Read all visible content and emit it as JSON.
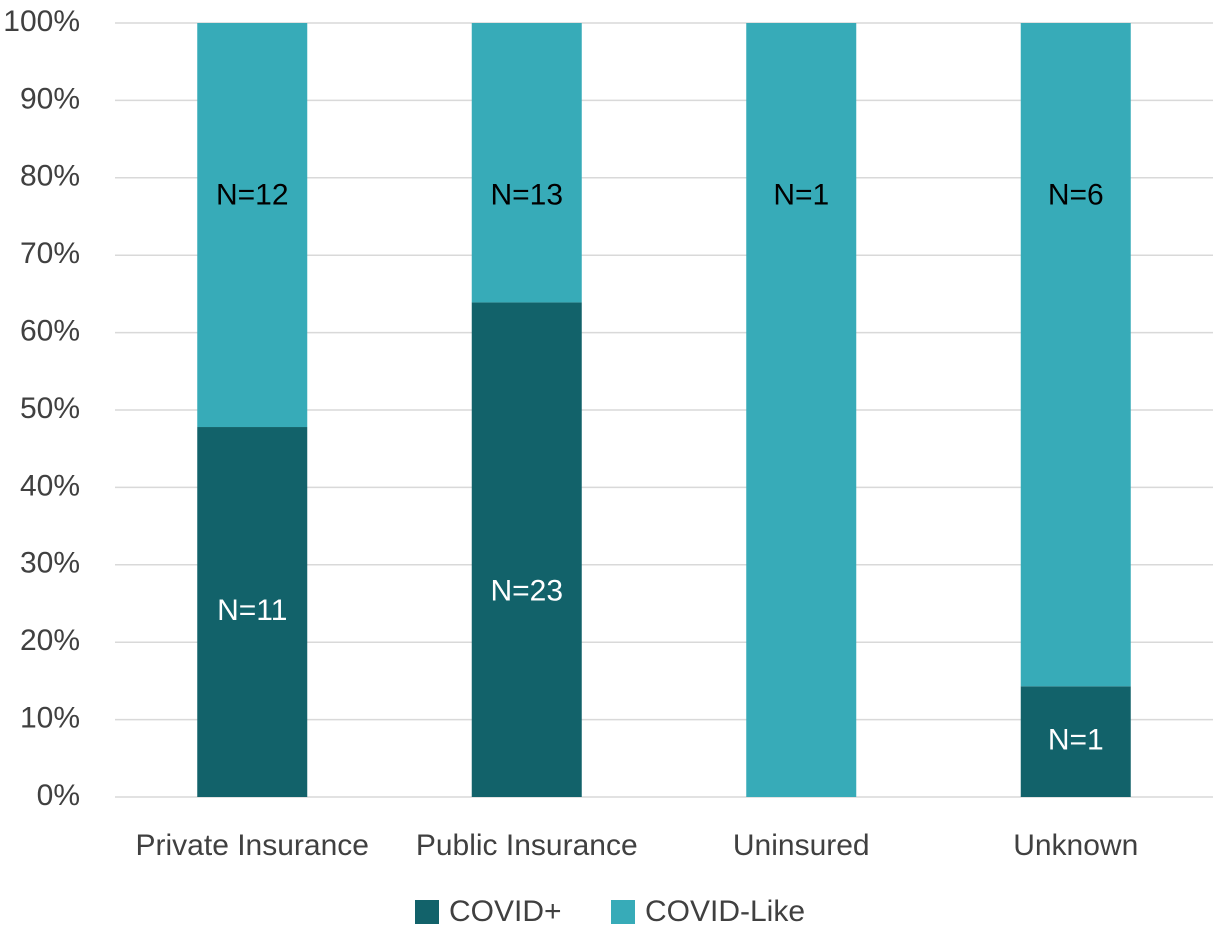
{
  "chart_data": {
    "type": "stacked_bar",
    "categories": [
      "Private Insurance",
      "Public Insurance",
      "Uninsured",
      "Unknown"
    ],
    "series": [
      {
        "name": "COVID+",
        "color": "#12626a",
        "values": [
          47.8,
          63.9,
          0,
          14.3
        ],
        "annotations": [
          "N=11",
          "N=23",
          null,
          "N=1"
        ],
        "label_color": "#ffffff"
      },
      {
        "name": "COVID-Like",
        "color": "#37abb8",
        "values": [
          52.2,
          36.1,
          100,
          85.7
        ],
        "annotations": [
          "N=12",
          "N=13",
          "N=1",
          "N=6"
        ],
        "label_color": "#000000"
      }
    ],
    "ylim": [
      0,
      100
    ],
    "yticks": [
      {
        "value": 0,
        "label": "0%"
      },
      {
        "value": 10,
        "label": "10%"
      },
      {
        "value": 20,
        "label": "20%"
      },
      {
        "value": 30,
        "label": "30%"
      },
      {
        "value": 40,
        "label": "40%"
      },
      {
        "value": 50,
        "label": "50%"
      },
      {
        "value": 60,
        "label": "60%"
      },
      {
        "value": 70,
        "label": "70%"
      },
      {
        "value": 80,
        "label": "80%"
      },
      {
        "value": 90,
        "label": "90%"
      },
      {
        "value": 100,
        "label": "100%"
      }
    ],
    "grid": true,
    "legend": "bottom"
  }
}
